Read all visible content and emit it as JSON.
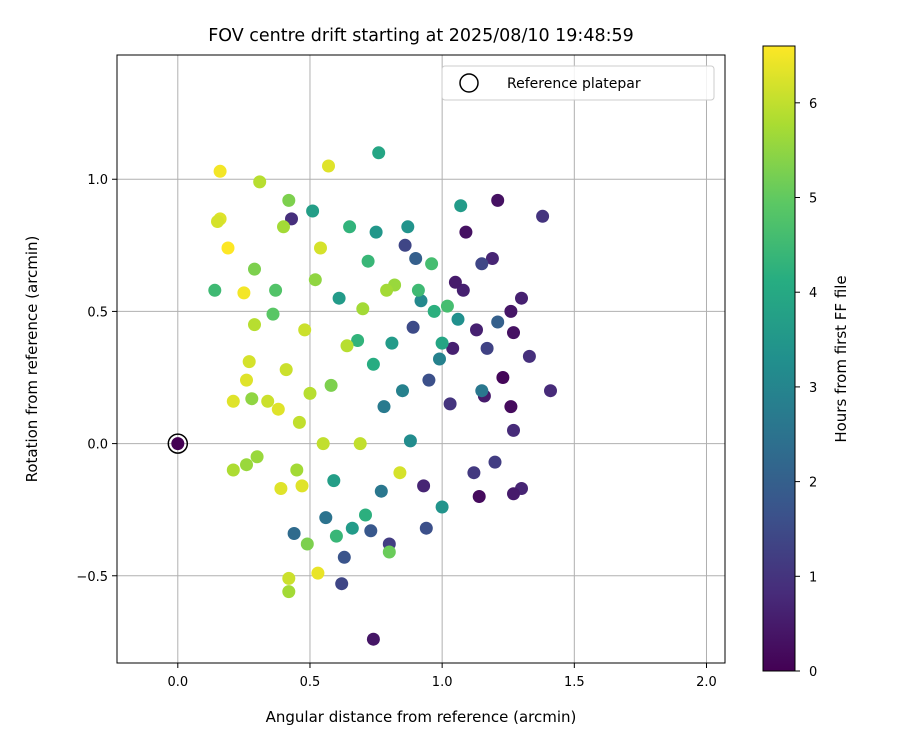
{
  "chart_data": {
    "type": "scatter",
    "title": "FOV centre drift starting at 2025/08/10 19:48:59",
    "xlabel": "Angular distance from reference (arcmin)",
    "ylabel": "Rotation from reference (arcmin)",
    "colorbar_label": "Hours from first FF file",
    "xlim": [
      -0.23,
      2.07
    ],
    "ylim": [
      -0.83,
      1.47
    ],
    "clim": [
      0,
      6.6
    ],
    "colormap": "viridis",
    "grid": true,
    "legend_position": "upper-right",
    "x_ticks": [
      {
        "value": 0.0,
        "label": "0.0"
      },
      {
        "value": 0.5,
        "label": "0.5"
      },
      {
        "value": 1.0,
        "label": "1.0"
      },
      {
        "value": 1.5,
        "label": "1.5"
      },
      {
        "value": 2.0,
        "label": "2.0"
      }
    ],
    "y_ticks": [
      {
        "value": -0.5,
        "label": "−0.5"
      },
      {
        "value": 0.0,
        "label": "0.0"
      },
      {
        "value": 0.5,
        "label": "0.5"
      },
      {
        "value": 1.0,
        "label": "1.0"
      }
    ],
    "colorbar_ticks": [
      {
        "value": 0,
        "label": "0"
      },
      {
        "value": 1,
        "label": "1"
      },
      {
        "value": 2,
        "label": "2"
      },
      {
        "value": 3,
        "label": "3"
      },
      {
        "value": 4,
        "label": "4"
      },
      {
        "value": 5,
        "label": "5"
      },
      {
        "value": 6,
        "label": "6"
      }
    ],
    "reference": {
      "label": "Reference platepar",
      "x": 0.0,
      "y": 0.0
    },
    "series": [
      {
        "name": "",
        "points": [
          {
            "x": 0.0,
            "y": 0.0,
            "hours": 0.0
          },
          {
            "x": 0.74,
            "y": -0.74,
            "hours": 0.4
          },
          {
            "x": 1.38,
            "y": 0.86,
            "hours": 1.0
          },
          {
            "x": 1.41,
            "y": 0.2,
            "hours": 0.8
          },
          {
            "x": 1.33,
            "y": 0.33,
            "hours": 0.9
          },
          {
            "x": 1.3,
            "y": 0.55,
            "hours": 0.6
          },
          {
            "x": 1.3,
            "y": -0.17,
            "hours": 0.7
          },
          {
            "x": 1.27,
            "y": -0.19,
            "hours": 0.5
          },
          {
            "x": 1.26,
            "y": 0.5,
            "hours": 0.4
          },
          {
            "x": 1.27,
            "y": 0.05,
            "hours": 0.8
          },
          {
            "x": 1.27,
            "y": 0.42,
            "hours": 0.3
          },
          {
            "x": 1.26,
            "y": 0.14,
            "hours": 0.2
          },
          {
            "x": 1.23,
            "y": 0.25,
            "hours": 0.1
          },
          {
            "x": 1.21,
            "y": 0.92,
            "hours": 0.3
          },
          {
            "x": 1.21,
            "y": 0.46,
            "hours": 2.0
          },
          {
            "x": 1.2,
            "y": -0.07,
            "hours": 1.2
          },
          {
            "x": 1.19,
            "y": 0.7,
            "hours": 0.7
          },
          {
            "x": 1.17,
            "y": 0.36,
            "hours": 1.3
          },
          {
            "x": 1.16,
            "y": 0.18,
            "hours": 0.5
          },
          {
            "x": 1.15,
            "y": 0.68,
            "hours": 1.4
          },
          {
            "x": 1.15,
            "y": 0.2,
            "hours": 2.6
          },
          {
            "x": 1.14,
            "y": -0.2,
            "hours": 0.2
          },
          {
            "x": 1.13,
            "y": 0.43,
            "hours": 0.6
          },
          {
            "x": 1.12,
            "y": -0.11,
            "hours": 1.1
          },
          {
            "x": 1.09,
            "y": 0.8,
            "hours": 0.3
          },
          {
            "x": 1.08,
            "y": 0.58,
            "hours": 0.6
          },
          {
            "x": 1.07,
            "y": 0.9,
            "hours": 3.6
          },
          {
            "x": 1.06,
            "y": 0.47,
            "hours": 3.3
          },
          {
            "x": 1.05,
            "y": 0.61,
            "hours": 0.5
          },
          {
            "x": 1.04,
            "y": 0.36,
            "hours": 0.6
          },
          {
            "x": 1.03,
            "y": 0.15,
            "hours": 1.0
          },
          {
            "x": 1.02,
            "y": 0.52,
            "hours": 4.6
          },
          {
            "x": 1.0,
            "y": -0.24,
            "hours": 3.4
          },
          {
            "x": 1.0,
            "y": 0.38,
            "hours": 3.9
          },
          {
            "x": 0.99,
            "y": 0.32,
            "hours": 2.9
          },
          {
            "x": 0.97,
            "y": 0.5,
            "hours": 4.2
          },
          {
            "x": 0.96,
            "y": 0.68,
            "hours": 4.6
          },
          {
            "x": 0.95,
            "y": 0.24,
            "hours": 1.6
          },
          {
            "x": 0.94,
            "y": -0.32,
            "hours": 1.6
          },
          {
            "x": 0.93,
            "y": -0.16,
            "hours": 0.7
          },
          {
            "x": 0.92,
            "y": 0.54,
            "hours": 3.1
          },
          {
            "x": 0.91,
            "y": 0.58,
            "hours": 4.5
          },
          {
            "x": 0.9,
            "y": 0.7,
            "hours": 2.0
          },
          {
            "x": 0.89,
            "y": 0.44,
            "hours": 1.5
          },
          {
            "x": 0.88,
            "y": 0.01,
            "hours": 3.2
          },
          {
            "x": 0.87,
            "y": 0.82,
            "hours": 3.4
          },
          {
            "x": 0.86,
            "y": 0.75,
            "hours": 1.4
          },
          {
            "x": 0.85,
            "y": 0.2,
            "hours": 2.9
          },
          {
            "x": 0.84,
            "y": -0.11,
            "hours": 6.2
          },
          {
            "x": 0.82,
            "y": 0.6,
            "hours": 5.6
          },
          {
            "x": 0.81,
            "y": 0.38,
            "hours": 3.6
          },
          {
            "x": 0.8,
            "y": -0.38,
            "hours": 1.2
          },
          {
            "x": 0.8,
            "y": -0.41,
            "hours": 5.1
          },
          {
            "x": 0.79,
            "y": 0.58,
            "hours": 5.7
          },
          {
            "x": 0.78,
            "y": 0.14,
            "hours": 2.7
          },
          {
            "x": 0.77,
            "y": -0.18,
            "hours": 2.6
          },
          {
            "x": 0.76,
            "y": 1.1,
            "hours": 3.9
          },
          {
            "x": 0.75,
            "y": 0.8,
            "hours": 3.5
          },
          {
            "x": 0.74,
            "y": 0.3,
            "hours": 4.1
          },
          {
            "x": 0.73,
            "y": -0.33,
            "hours": 1.8
          },
          {
            "x": 0.72,
            "y": 0.69,
            "hours": 4.4
          },
          {
            "x": 0.71,
            "y": -0.27,
            "hours": 4.2
          },
          {
            "x": 0.7,
            "y": 0.51,
            "hours": 5.7
          },
          {
            "x": 0.69,
            "y": 0.0,
            "hours": 6.0
          },
          {
            "x": 0.68,
            "y": 0.39,
            "hours": 4.3
          },
          {
            "x": 0.66,
            "y": -0.32,
            "hours": 3.6
          },
          {
            "x": 0.65,
            "y": 0.82,
            "hours": 4.3
          },
          {
            "x": 0.64,
            "y": 0.37,
            "hours": 5.9
          },
          {
            "x": 0.63,
            "y": -0.43,
            "hours": 1.7
          },
          {
            "x": 0.62,
            "y": -0.53,
            "hours": 1.4
          },
          {
            "x": 0.61,
            "y": 0.55,
            "hours": 3.6
          },
          {
            "x": 0.6,
            "y": -0.35,
            "hours": 4.4
          },
          {
            "x": 0.59,
            "y": -0.14,
            "hours": 3.7
          },
          {
            "x": 0.58,
            "y": 0.22,
            "hours": 5.3
          },
          {
            "x": 0.57,
            "y": 1.05,
            "hours": 6.3
          },
          {
            "x": 0.56,
            "y": -0.28,
            "hours": 2.5
          },
          {
            "x": 0.55,
            "y": 0.0,
            "hours": 6.0
          },
          {
            "x": 0.54,
            "y": 0.74,
            "hours": 6.2
          },
          {
            "x": 0.53,
            "y": -0.49,
            "hours": 6.4
          },
          {
            "x": 0.52,
            "y": 0.62,
            "hours": 5.5
          },
          {
            "x": 0.51,
            "y": 0.88,
            "hours": 3.7
          },
          {
            "x": 0.5,
            "y": 0.19,
            "hours": 5.9
          },
          {
            "x": 0.49,
            "y": -0.38,
            "hours": 5.3
          },
          {
            "x": 0.48,
            "y": 0.43,
            "hours": 6.1
          },
          {
            "x": 0.47,
            "y": -0.16,
            "hours": 6.3
          },
          {
            "x": 0.46,
            "y": 0.08,
            "hours": 6.0
          },
          {
            "x": 0.45,
            "y": -0.1,
            "hours": 5.7
          },
          {
            "x": 0.44,
            "y": -0.34,
            "hours": 2.3
          },
          {
            "x": 0.43,
            "y": 0.85,
            "hours": 0.9
          },
          {
            "x": 0.42,
            "y": 0.92,
            "hours": 5.3
          },
          {
            "x": 0.42,
            "y": -0.51,
            "hours": 6.1
          },
          {
            "x": 0.42,
            "y": -0.56,
            "hours": 5.7
          },
          {
            "x": 0.41,
            "y": 0.28,
            "hours": 6.1
          },
          {
            "x": 0.4,
            "y": 0.82,
            "hours": 5.7
          },
          {
            "x": 0.39,
            "y": -0.17,
            "hours": 6.3
          },
          {
            "x": 0.38,
            "y": 0.13,
            "hours": 6.3
          },
          {
            "x": 0.37,
            "y": 0.58,
            "hours": 4.8
          },
          {
            "x": 0.36,
            "y": 0.49,
            "hours": 4.9
          },
          {
            "x": 0.34,
            "y": 0.16,
            "hours": 6.1
          },
          {
            "x": 0.31,
            "y": 0.99,
            "hours": 5.9
          },
          {
            "x": 0.3,
            "y": -0.05,
            "hours": 5.6
          },
          {
            "x": 0.29,
            "y": 0.66,
            "hours": 5.3
          },
          {
            "x": 0.29,
            "y": 0.45,
            "hours": 5.9
          },
          {
            "x": 0.28,
            "y": 0.17,
            "hours": 5.5
          },
          {
            "x": 0.27,
            "y": 0.31,
            "hours": 6.2
          },
          {
            "x": 0.26,
            "y": 0.24,
            "hours": 6.3
          },
          {
            "x": 0.26,
            "y": -0.08,
            "hours": 5.6
          },
          {
            "x": 0.25,
            "y": 0.57,
            "hours": 6.5
          },
          {
            "x": 0.21,
            "y": -0.1,
            "hours": 5.8
          },
          {
            "x": 0.21,
            "y": 0.16,
            "hours": 6.3
          },
          {
            "x": 0.19,
            "y": 0.74,
            "hours": 6.6
          },
          {
            "x": 0.16,
            "y": 1.03,
            "hours": 6.5
          },
          {
            "x": 0.16,
            "y": 0.85,
            "hours": 6.3
          },
          {
            "x": 0.15,
            "y": 0.84,
            "hours": 6.2
          },
          {
            "x": 0.14,
            "y": 0.58,
            "hours": 4.5
          }
        ]
      }
    ]
  }
}
